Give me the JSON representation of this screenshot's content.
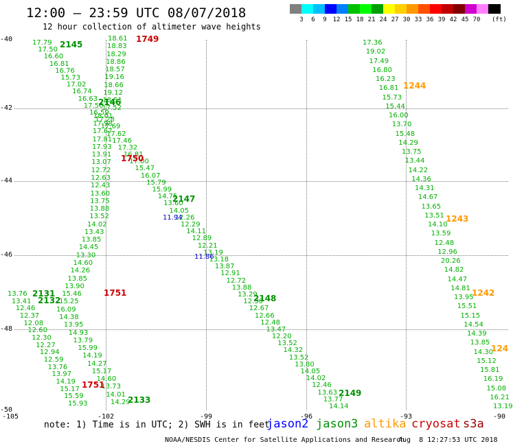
{
  "title": "12:00 – 23:59 UTC 08/07/2018",
  "subtitle": "12 hour collection of altimeter wave heights",
  "scale": {
    "unit": "(ft)",
    "colors": [
      "#808080",
      "#00ffff",
      "#00bfff",
      "#0000ff",
      "#0080ff",
      "#00c000",
      "#00ff00",
      "#00a000",
      "#ffff00",
      "#ffd000",
      "#ff9900",
      "#ff5000",
      "#ff0000",
      "#c00000",
      "#800000",
      "#d000d0",
      "#ff80ff",
      "#000000"
    ],
    "labels": [
      "",
      "3",
      "6",
      "9",
      "12",
      "15",
      "18",
      "21",
      "24",
      "27",
      "30",
      "33",
      "36",
      "39",
      "42",
      "45",
      "70",
      ""
    ]
  },
  "axes": {
    "lat_labels": [
      "-40",
      "-42",
      "-44",
      "-46",
      "-48",
      "-50"
    ],
    "lon_labels": [
      "-105",
      "-102",
      "-99",
      "-96",
      "-93",
      "-90"
    ]
  },
  "sat_colors": {
    "jason2": "#0000ff",
    "jason3": "#009000",
    "altika": "#ff9900",
    "cryosat": "#cc0000",
    "s3a": "#990000"
  },
  "tracks": [
    {
      "sat": "jason3",
      "color": "#00b000",
      "time": "2145",
      "time2": "2146",
      "values": [
        "17.79",
        "17.50",
        "16.60",
        "16.81",
        "16.76",
        "15.73",
        "17.02",
        "16.74",
        "16.63",
        "17.56",
        "16.59",
        "17.28",
        "17.69",
        "17.62",
        "17.46",
        "17.32",
        "16.81",
        "17.00",
        "15.47",
        "16.07",
        "15.79",
        "15.99",
        "14.75",
        "13.60",
        "14.05",
        "12.26",
        "12.29",
        "14.11",
        "12.89",
        "12.21",
        "13.19",
        "13.18",
        "13.87",
        "12.91",
        "12.72",
        "13.88",
        "13.29",
        "12.30",
        "12.67",
        "12.66",
        "12.48",
        "13.47",
        "12.20",
        "13.52",
        "14.32",
        "13.52",
        "13.80",
        "14.05",
        "14.02",
        "12.46",
        "13.63",
        "13.77",
        "14.14"
      ]
    },
    {
      "sat": "jason3",
      "color": "#00b000",
      "time": "2147",
      "values": []
    },
    {
      "sat": "jason3",
      "color": "#00b000",
      "time": "2148",
      "values": []
    },
    {
      "sat": "jason3",
      "color": "#00b000",
      "time": "2149",
      "values": []
    },
    {
      "sat": "jason2",
      "color": "#0000cc",
      "time": "",
      "values": [
        "11.94",
        "11.86"
      ]
    },
    {
      "sat": "jason3",
      "color": "#00b000",
      "time": "1749",
      "values": [
        "18.61",
        "18.83",
        "18.29",
        "18.86",
        "18.57",
        "19.16",
        "18.66",
        "19.12",
        "18.51",
        "17.52",
        "18.01",
        "17.98",
        "17.67",
        "17.81",
        "17.93",
        "13.91",
        "13.07",
        "12.72",
        "12.63",
        "12.43",
        "13.60",
        "13.75",
        "13.88",
        "13.52",
        "14.02",
        "13.43",
        "13.85",
        "14.45",
        "13.30",
        "14.60",
        "14.26",
        "13.85",
        "13.90",
        "15.46",
        "15.25",
        "16.09",
        "14.38",
        "13.95",
        "14.93",
        "13.79",
        "15.99",
        "14.19",
        "14.27",
        "15.17",
        "14.60",
        "13.73",
        "14.01",
        "14.29"
      ]
    },
    {
      "sat": "jason3",
      "color": "#00b000",
      "time": "2131",
      "time2": "2132",
      "values": [
        "13.76",
        "13.41",
        "12.46",
        "12.37",
        "12.08",
        "12.60",
        "12.30",
        "12.27",
        "12.94",
        "12.59",
        "13.76",
        "13.97",
        "14.19",
        "15.17",
        "15.59",
        "15.93"
      ]
    },
    {
      "sat": "jason3",
      "color": "#00b000",
      "time": "2133",
      "values": []
    },
    {
      "sat": "jason3",
      "color": "#00b000",
      "time": "1244",
      "values": [
        "17.36",
        "19.02",
        "17.49",
        "16.80",
        "16.23",
        "16.81",
        "15.73",
        "15.44",
        "16.00",
        "13.70",
        "15.48",
        "14.29",
        "13.75",
        "13.44",
        "14.22",
        "14.36",
        "14.31",
        "14.67",
        "13.65",
        "13.51",
        "14.10",
        "13.59",
        "12.48",
        "12.96",
        "20.26",
        "14.82",
        "14.47",
        "14.81",
        "13.95",
        "15.51",
        "15.15",
        "14.54",
        "14.39",
        "13.85",
        "14.30",
        "15.12",
        "15.81",
        "16.19",
        "15.08",
        "16.21",
        "13.19"
      ]
    },
    {
      "sat": "altika",
      "color": "#ff9900",
      "time": "1243",
      "values": []
    },
    {
      "sat": "altika",
      "color": "#ff9900",
      "time": "1242",
      "values": []
    },
    {
      "sat": "altika",
      "color": "#ff9900",
      "time": "124",
      "values": []
    },
    {
      "sat": "cryosat",
      "color": "#cc0000",
      "time": "1750",
      "values": []
    },
    {
      "sat": "cryosat",
      "color": "#cc0000",
      "time": "1751",
      "values": []
    },
    {
      "sat": "cryosat",
      "color": "#cc0000",
      "time": "1751",
      "values": []
    }
  ],
  "note": "note: 1) Time is in UTC; 2) SWH is in feet",
  "legend": [
    {
      "label": "jason2",
      "color": "#0000ff"
    },
    {
      "label": "jason3",
      "color": "#009000"
    },
    {
      "label": "altika",
      "color": "#ff9900"
    },
    {
      "label": "cryosat",
      "color": "#cc0000"
    },
    {
      "label": "s3a",
      "color": "#990000"
    }
  ],
  "credit": "NOAA/NESDIS Center for Satellite Applications and Research",
  "credit_time": "Aug  8 12:27:53 UTC 2018"
}
